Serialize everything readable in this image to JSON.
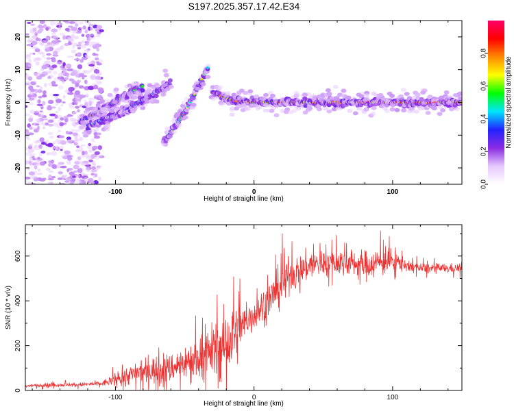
{
  "title": "S197.2025.357.17.42.E34",
  "chart_data": [
    {
      "type": "heatmap",
      "name": "spectrogram",
      "xlabel": "Height of straight line (km)",
      "ylabel": "Frequency (Hz)",
      "xlim": [
        -165,
        150
      ],
      "ylim": [
        -25,
        25
      ],
      "xticks": [
        "-100",
        "0",
        "100"
      ],
      "yticks": [
        "-20",
        "-10",
        "0",
        "10",
        "20"
      ],
      "xtick_values": [
        -100,
        0,
        100
      ],
      "ytick_values": [
        -20,
        -10,
        0,
        10,
        20
      ],
      "colorbar": {
        "label": "Normalized spectral amplitude",
        "range": [
          0,
          1
        ],
        "ticks": [
          "0.0",
          "0.2",
          "0.4",
          "0.6",
          "0.8"
        ],
        "tick_values": [
          0.0,
          0.2,
          0.4,
          0.6,
          0.8
        ],
        "colors": [
          "#ffffff",
          "#e6c8ff",
          "#8a2be2",
          "#2222ff",
          "#00e5ff",
          "#00ff00",
          "#ffff00",
          "#ff8800",
          "#ff0000",
          "#ff0066"
        ]
      },
      "features": [
        {
          "name": "noise scatter",
          "x_range": [
            -165,
            -110
          ],
          "freq_range": [
            -25,
            25
          ],
          "level": 0.1
        },
        {
          "name": "stripe A",
          "points": [
            [
              -125,
              -6
            ],
            [
              -105,
              -1
            ],
            [
              -90,
              3
            ],
            [
              -80,
              5
            ]
          ],
          "level": 0.4
        },
        {
          "name": "stripe B",
          "points": [
            [
              -120,
              -7
            ],
            [
              -95,
              -3
            ],
            [
              -75,
              2
            ],
            [
              -60,
              6
            ]
          ],
          "level": 0.35
        },
        {
          "name": "stripe C",
          "points": [
            [
              -65,
              -12
            ],
            [
              -50,
              -3
            ],
            [
              -40,
              5
            ],
            [
              -33,
              11
            ]
          ],
          "level": 0.45
        },
        {
          "name": "carrier tail",
          "points": [
            [
              -30,
              3
            ],
            [
              -15,
              0.5
            ],
            [
              0,
              0
            ],
            [
              150,
              0
            ]
          ],
          "level": 0.75
        }
      ]
    },
    {
      "type": "line",
      "name": "snr",
      "xlabel": "Height of straight line (km)",
      "ylabel": "SNR (10 * v/v)",
      "xlim": [
        -165,
        150
      ],
      "ylim": [
        0,
        740
      ],
      "xticks": [
        "-100",
        "0",
        "100"
      ],
      "yticks": [
        "0",
        "200",
        "400",
        "600"
      ],
      "xtick_values": [
        -100,
        0,
        100
      ],
      "ytick_values": [
        0,
        200,
        400,
        600
      ],
      "color": "#ee3333",
      "series": [
        {
          "name": "SNR",
          "x": [
            -165,
            -150,
            -130,
            -110,
            -95,
            -80,
            -60,
            -40,
            -30,
            -20,
            -15,
            -10,
            -5,
            0,
            10,
            20,
            25,
            30,
            40,
            50,
            60,
            70,
            80,
            90,
            100,
            110,
            120,
            130,
            150
          ],
          "y": [
            20,
            25,
            25,
            30,
            60,
            85,
            100,
            150,
            180,
            200,
            240,
            270,
            310,
            340,
            400,
            470,
            520,
            525,
            560,
            570,
            570,
            570,
            560,
            570,
            580,
            560,
            545,
            545,
            545
          ],
          "noise_amplitude": [
            5,
            8,
            8,
            10,
            35,
            50,
            60,
            80,
            110,
            160,
            130,
            100,
            80,
            70,
            70,
            90,
            70,
            60,
            65,
            55,
            55,
            55,
            60,
            60,
            45,
            30,
            22,
            20,
            18
          ]
        }
      ]
    }
  ]
}
